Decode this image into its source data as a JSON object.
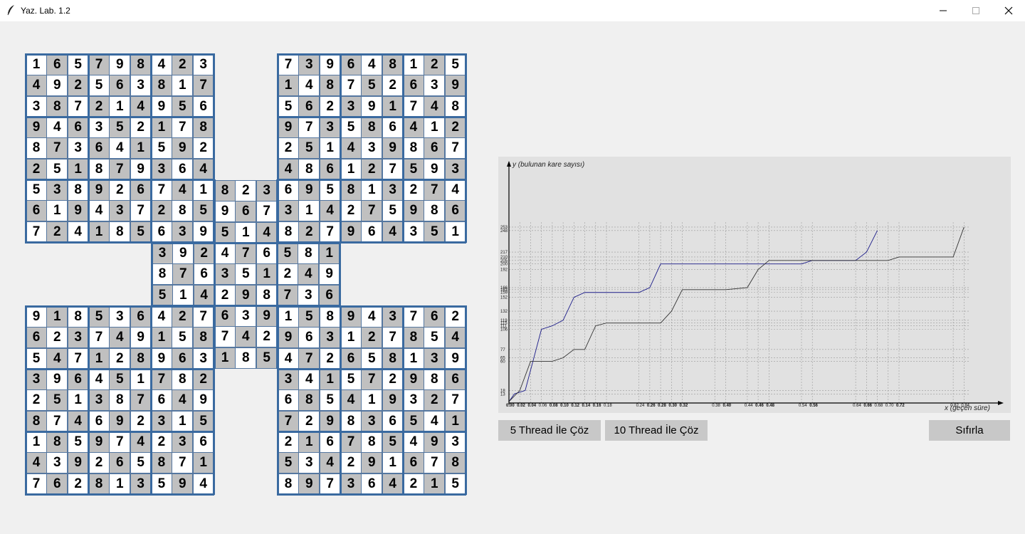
{
  "window": {
    "title": "Yaz. Lab. 1.2"
  },
  "buttons": {
    "solve5": "5 Thread İle Çöz",
    "solve10": "10 Thread İle Çöz",
    "reset": "Sıfırla"
  },
  "grids": {
    "top_left": [
      "165798423",
      "492563817",
      "387214956",
      "946352178",
      "873641592",
      "251879364",
      "538926741",
      "619437285",
      "724185639"
    ],
    "top_right": [
      "739648125",
      "148752639",
      "562391748",
      "973586412",
      "251439867",
      "486127593",
      "695813274",
      "314275986",
      "827964351"
    ],
    "center": [
      "741823695",
      "285967314",
      "639514827",
      "392476581",
      "876351249",
      "514298736",
      "427639158",
      "158742963",
      "963185472"
    ],
    "bottom_left": [
      "918536427",
      "623749158",
      "547128963",
      "396451782",
      "251387649",
      "874692315",
      "185974236",
      "439265871",
      "762813594"
    ],
    "bottom_right": [
      "158943762",
      "963127854",
      "472658139",
      "341572986",
      "685419327",
      "729836541",
      "216785493",
      "534291678",
      "897364215"
    ]
  },
  "chart_data": {
    "type": "line",
    "ylabel": "y (bulunan kare sayısı)",
    "xlabel": "x (geçen süre)",
    "xlim": [
      0,
      0.9
    ],
    "ylim": [
      0,
      340
    ],
    "x_ticks": [
      {
        "label": "0.00",
        "v": 0.0,
        "b": 1
      },
      {
        "label": "0.02",
        "v": 0.02,
        "b": 1
      },
      {
        "label": "0.04",
        "v": 0.04,
        "b": 1
      },
      {
        "label": "0.06",
        "v": 0.06,
        "b": 0
      },
      {
        "label": "0.08",
        "v": 0.08,
        "b": 1
      },
      {
        "label": "0.10",
        "v": 0.1,
        "b": 1
      },
      {
        "label": "0.12",
        "v": 0.12,
        "b": 1
      },
      {
        "label": "0.14",
        "v": 0.14,
        "b": 1
      },
      {
        "label": "0.16",
        "v": 0.16,
        "b": 1
      },
      {
        "label": "0.18",
        "v": 0.18,
        "b": 0
      },
      {
        "label": "0.24",
        "v": 0.24,
        "b": 0
      },
      {
        "label": "0.26",
        "v": 0.26,
        "b": 1
      },
      {
        "label": "0.28",
        "v": 0.28,
        "b": 1
      },
      {
        "label": "0.30",
        "v": 0.3,
        "b": 1
      },
      {
        "label": "0.32",
        "v": 0.32,
        "b": 1
      },
      {
        "label": "0.38",
        "v": 0.38,
        "b": 0
      },
      {
        "label": "0.40",
        "v": 0.4,
        "b": 1
      },
      {
        "label": "0.44",
        "v": 0.44,
        "b": 0
      },
      {
        "label": "0.46",
        "v": 0.46,
        "b": 1
      },
      {
        "label": "0.48",
        "v": 0.48,
        "b": 1
      },
      {
        "label": "0.54",
        "v": 0.54,
        "b": 0
      },
      {
        "label": "0.56",
        "v": 0.56,
        "b": 1
      },
      {
        "label": "0.64",
        "v": 0.64,
        "b": 0
      },
      {
        "label": "0.66",
        "v": 0.66,
        "b": 1
      },
      {
        "label": "0.68",
        "v": 0.68,
        "b": 0
      },
      {
        "label": "0.70",
        "v": 0.7,
        "b": 0
      },
      {
        "label": "0.72",
        "v": 0.72,
        "b": 1
      },
      {
        "label": "0.82",
        "v": 0.82,
        "b": 0
      },
      {
        "label": "0.84",
        "v": 0.84,
        "b": 0
      }
    ],
    "y_ticks": [
      13,
      18,
      60,
      65,
      77,
      106,
      111,
      115,
      119,
      132,
      152,
      159,
      163,
      166,
      192,
      200,
      205,
      210,
      217,
      248,
      253
    ],
    "series": [
      {
        "color": "#1a1a88",
        "points": [
          [
            0,
            2
          ],
          [
            0.01,
            13
          ],
          [
            0.03,
            18
          ],
          [
            0.06,
            106
          ],
          [
            0.08,
            111
          ],
          [
            0.1,
            119
          ],
          [
            0.12,
            152
          ],
          [
            0.14,
            159
          ],
          [
            0.16,
            159
          ],
          [
            0.18,
            159
          ],
          [
            0.24,
            159
          ],
          [
            0.26,
            166
          ],
          [
            0.28,
            200
          ],
          [
            0.3,
            200
          ],
          [
            0.32,
            200
          ],
          [
            0.38,
            200
          ],
          [
            0.4,
            200
          ],
          [
            0.44,
            200
          ],
          [
            0.46,
            200
          ],
          [
            0.48,
            200
          ],
          [
            0.54,
            200
          ],
          [
            0.56,
            205
          ],
          [
            0.64,
            205
          ],
          [
            0.66,
            217
          ],
          [
            0.68,
            248
          ]
        ]
      },
      {
        "color": "#333333",
        "points": [
          [
            0,
            2
          ],
          [
            0.02,
            18
          ],
          [
            0.04,
            60
          ],
          [
            0.06,
            60
          ],
          [
            0.08,
            60
          ],
          [
            0.1,
            65
          ],
          [
            0.12,
            77
          ],
          [
            0.14,
            77
          ],
          [
            0.16,
            111
          ],
          [
            0.18,
            115
          ],
          [
            0.24,
            115
          ],
          [
            0.26,
            115
          ],
          [
            0.28,
            115
          ],
          [
            0.3,
            132
          ],
          [
            0.32,
            163
          ],
          [
            0.38,
            163
          ],
          [
            0.4,
            163
          ],
          [
            0.44,
            166
          ],
          [
            0.46,
            192
          ],
          [
            0.48,
            205
          ],
          [
            0.54,
            205
          ],
          [
            0.56,
            205
          ],
          [
            0.64,
            205
          ],
          [
            0.66,
            205
          ],
          [
            0.68,
            205
          ],
          [
            0.7,
            205
          ],
          [
            0.72,
            210
          ],
          [
            0.82,
            210
          ],
          [
            0.84,
            253
          ]
        ]
      }
    ]
  }
}
